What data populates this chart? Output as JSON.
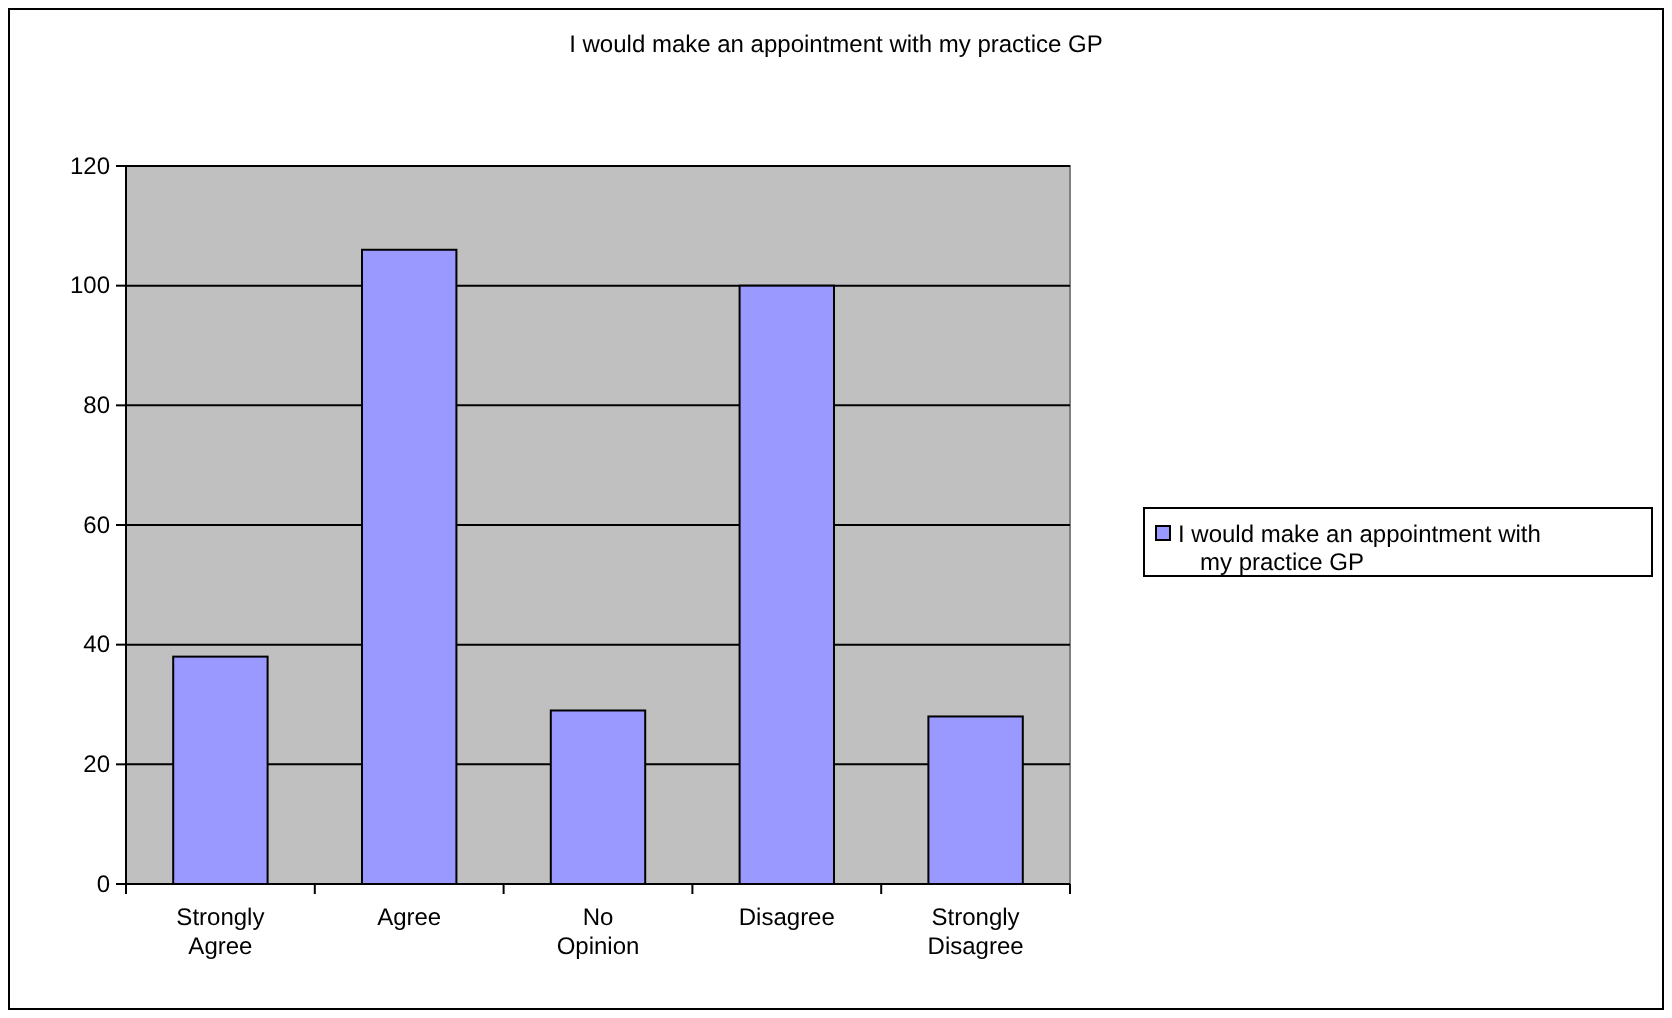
{
  "chart_data": {
    "type": "bar",
    "title": "I would make an appointment with my practice GP",
    "categories": [
      "Strongly Agree",
      "Agree",
      "No Opinion",
      "Disagree",
      "Strongly Disagree"
    ],
    "series": [
      {
        "name": "I would make an appointment with my practice GP",
        "color": "#9999ff",
        "values": [
          38,
          106,
          29,
          100,
          28
        ]
      }
    ],
    "ylim": [
      0,
      120
    ],
    "yticks": [
      0,
      20,
      40,
      60,
      80,
      100,
      120
    ],
    "grid": "y",
    "legend": "right"
  }
}
